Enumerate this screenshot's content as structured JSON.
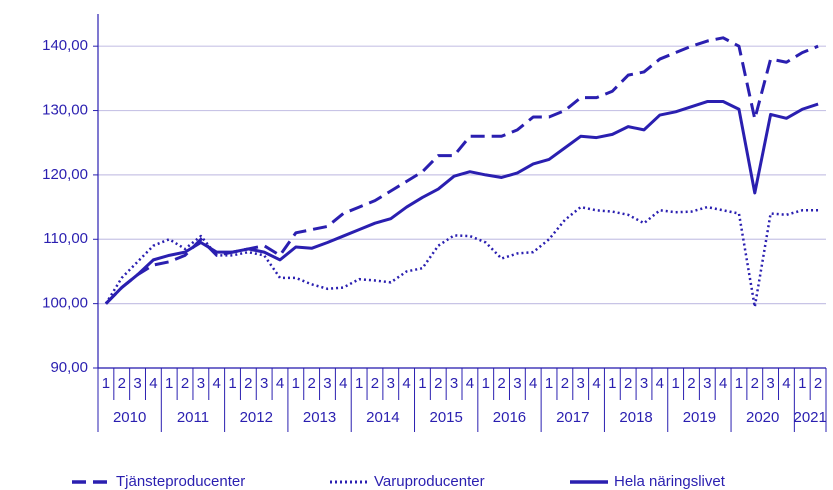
{
  "chart_data": {
    "type": "line",
    "categories": [
      "1",
      "2",
      "3",
      "4",
      "1",
      "2",
      "3",
      "4",
      "1",
      "2",
      "3",
      "4",
      "1",
      "2",
      "3",
      "4",
      "1",
      "2",
      "3",
      "4",
      "1",
      "2",
      "3",
      "4",
      "1",
      "2",
      "3",
      "4",
      "1",
      "2",
      "3",
      "4",
      "1",
      "2",
      "3",
      "4",
      "1",
      "2",
      "3",
      "4",
      "1",
      "2",
      "3",
      "4",
      "1",
      "2"
    ],
    "years": [
      "2010",
      "2011",
      "2012",
      "2013",
      "2014",
      "2015",
      "2016",
      "2017",
      "2018",
      "2019",
      "2020",
      "2021"
    ],
    "ylim": [
      90,
      145
    ],
    "yticks": [
      {
        "value": 90,
        "label": "90,00"
      },
      {
        "value": 100,
        "label": "100,00"
      },
      {
        "value": 110,
        "label": "110,00"
      },
      {
        "value": 120,
        "label": "120,00"
      },
      {
        "value": 130,
        "label": "130,00"
      },
      {
        "value": 140,
        "label": "140,00"
      }
    ],
    "grid": true,
    "legend": "bottom",
    "series": [
      {
        "name": "Tjänsteproducenter",
        "color": "#2a1fb0",
        "dash": "dashed",
        "values": [
          100,
          102.5,
          104.5,
          106,
          106.5,
          107.5,
          110,
          107.5,
          108,
          108.5,
          109,
          107.5,
          111,
          111.5,
          112,
          114,
          115,
          116,
          117.5,
          119,
          120.5,
          123,
          123,
          126,
          126,
          126,
          127,
          129,
          129,
          130,
          132,
          132,
          133,
          135.5,
          136,
          138,
          139,
          140,
          140.8,
          141.3,
          140,
          128.7,
          138,
          137.5,
          139,
          140
        ]
      },
      {
        "name": "Varuproducenter",
        "color": "#2a1fb0",
        "dash": "dotted",
        "values": [
          100,
          104,
          106.5,
          109,
          110,
          108.5,
          110.5,
          107.5,
          107.5,
          108,
          107.5,
          104,
          104,
          103,
          102.3,
          102.5,
          103.8,
          103.6,
          103.3,
          105,
          105.5,
          109,
          110.6,
          110.5,
          109.5,
          107,
          107.8,
          108,
          110,
          113,
          115,
          114.5,
          114.3,
          113.8,
          112.5,
          114.5,
          114.2,
          114.3,
          115,
          114.5,
          114,
          99.5,
          114,
          113.8,
          114.5,
          114.5
        ]
      },
      {
        "name": "Hela näringslivet",
        "color": "#2a1fb0",
        "dash": "solid",
        "values": [
          100,
          102.5,
          104.5,
          106.8,
          107.5,
          108,
          109.5,
          108,
          108,
          108.5,
          108,
          106.8,
          108.8,
          108.6,
          109.5,
          110.5,
          111.5,
          112.5,
          113.2,
          115,
          116.5,
          117.8,
          119.8,
          120.5,
          120,
          119.6,
          120.3,
          121.7,
          122.4,
          124.2,
          126,
          125.8,
          126.3,
          127.5,
          127,
          129.3,
          129.8,
          130.6,
          131.4,
          131.4,
          130.2,
          117.2,
          129.4,
          128.8,
          130.2,
          131
        ]
      }
    ]
  }
}
